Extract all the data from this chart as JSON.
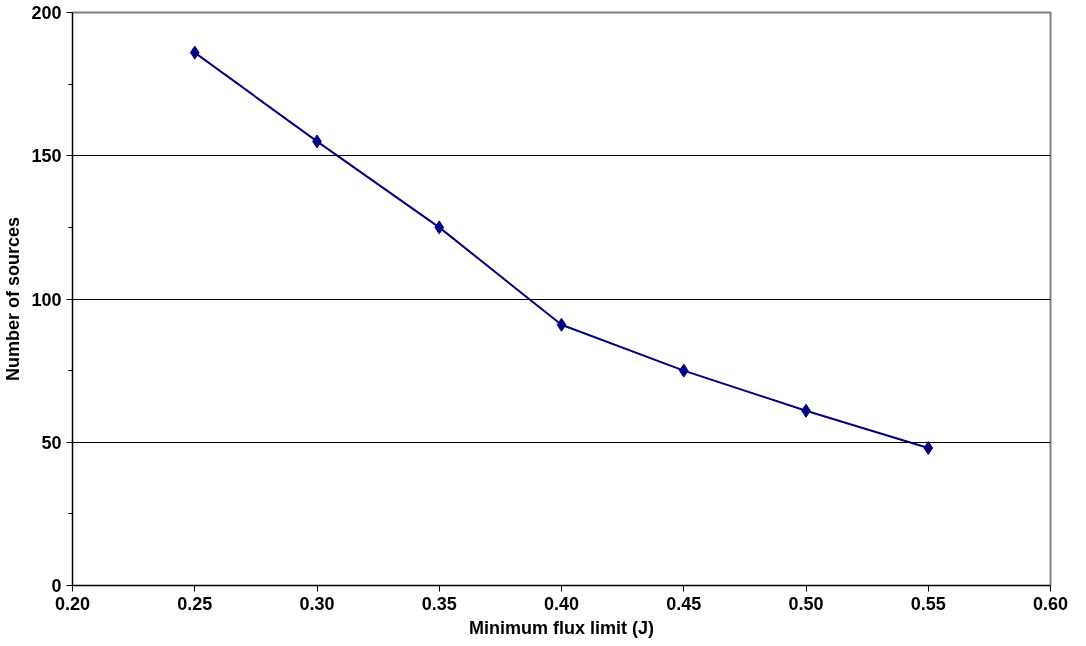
{
  "chart_data": {
    "type": "line",
    "xlabel": "Minimum flux limit (J)",
    "ylabel": "Number of sources",
    "x": [
      0.25,
      0.3,
      0.35,
      0.4,
      0.45,
      0.5,
      0.55
    ],
    "series": [
      {
        "color": "#000080",
        "values": [
          186,
          155,
          125,
          91,
          75,
          61,
          48
        ]
      }
    ],
    "xlim": [
      0.2,
      0.6
    ],
    "xticks": [
      {
        "value": 0.2,
        "label": "0.20"
      },
      {
        "value": 0.25,
        "label": "0.25"
      },
      {
        "value": 0.3,
        "label": "0.30"
      },
      {
        "value": 0.35,
        "label": "0.35"
      },
      {
        "value": 0.4,
        "label": "0.40"
      },
      {
        "value": 0.45,
        "label": "0.45"
      },
      {
        "value": 0.5,
        "label": "0.50"
      },
      {
        "value": 0.55,
        "label": "0.55"
      },
      {
        "value": 0.6,
        "label": "0.60"
      }
    ],
    "ylim": [
      0,
      200
    ],
    "yticks": [
      0,
      50,
      100,
      150,
      200
    ],
    "grid": "y",
    "marker": "diamond",
    "line_style": "solid"
  }
}
